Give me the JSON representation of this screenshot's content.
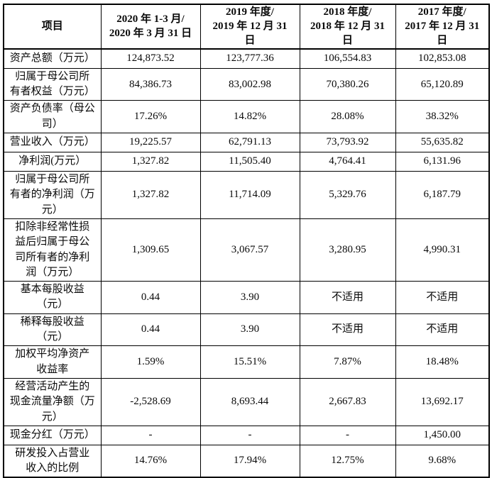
{
  "table": {
    "headers": [
      "项目",
      "2020 年 1-3 月/\n2020 年 3 月 31 日",
      "2019 年度/\n2019 年 12 月 31\n日",
      "2018 年度/\n2018 年 12 月 31\n日",
      "2017 年度/\n2017 年 12 月 31\n日"
    ],
    "rows": [
      {
        "label": "资产总额（万元）",
        "values": [
          "124,873.52",
          "123,777.36",
          "106,554.83",
          "102,853.08"
        ]
      },
      {
        "label": "归属于母公司所\n有者权益（万元）",
        "values": [
          "84,386.73",
          "83,002.98",
          "70,380.26",
          "65,120.89"
        ]
      },
      {
        "label": "资产负债率（母公\n司）",
        "values": [
          "17.26%",
          "14.82%",
          "28.08%",
          "38.32%"
        ]
      },
      {
        "label": "营业收入（万元）",
        "values": [
          "19,225.57",
          "62,791.13",
          "73,793.92",
          "55,635.82"
        ]
      },
      {
        "label": "净利润(万元）",
        "values": [
          "1,327.82",
          "11,505.40",
          "4,764.41",
          "6,131.96"
        ]
      },
      {
        "label": "归属于母公司所\n有者的净利润（万\n元）",
        "values": [
          "1,327.82",
          "11,714.09",
          "5,329.76",
          "6,187.79"
        ]
      },
      {
        "label": "扣除非经常性损\n益后归属于母公\n司所有者的净利\n润（万元）",
        "values": [
          "1,309.65",
          "3,067.57",
          "3,280.95",
          "4,990.31"
        ]
      },
      {
        "label": "基本每股收益\n（元）",
        "values": [
          "0.44",
          "3.90",
          "不适用",
          "不适用"
        ]
      },
      {
        "label": "稀释每股收益\n（元）",
        "values": [
          "0.44",
          "3.90",
          "不适用",
          "不适用"
        ]
      },
      {
        "label": "加权平均净资产\n收益率",
        "values": [
          "1.59%",
          "15.51%",
          "7.87%",
          "18.48%"
        ]
      },
      {
        "label": "经营活动产生的\n现金流量净额（万\n元）",
        "values": [
          "-2,528.69",
          "8,693.44",
          "2,667.83",
          "13,692.17"
        ]
      },
      {
        "label": "现金分红（万元）",
        "values": [
          "-",
          "-",
          "-",
          "1,450.00"
        ]
      },
      {
        "label": "研发投入占营业\n收入的比例",
        "values": [
          "14.76%",
          "17.94%",
          "12.75%",
          "9.68%"
        ]
      }
    ]
  }
}
